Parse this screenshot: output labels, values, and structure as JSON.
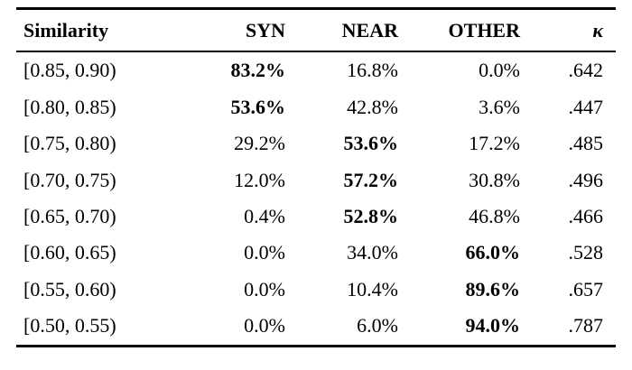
{
  "page": {
    "background": "#ffffff",
    "text_color": "#000000"
  },
  "table": {
    "headers": [
      "Similarity",
      "SYN",
      "NEAR",
      "OTHER",
      "κ"
    ],
    "rows": [
      {
        "similarity": "[0.85, 0.90)",
        "syn": "83.2%",
        "near": "16.8%",
        "other": "0.0%",
        "kappa": ".642",
        "bold": "syn"
      },
      {
        "similarity": "[0.80, 0.85)",
        "syn": "53.6%",
        "near": "42.8%",
        "other": "3.6%",
        "kappa": ".447",
        "bold": "syn"
      },
      {
        "similarity": "[0.75, 0.80)",
        "syn": "29.2%",
        "near": "53.6%",
        "other": "17.2%",
        "kappa": ".485",
        "bold": "near"
      },
      {
        "similarity": "[0.70, 0.75)",
        "syn": "12.0%",
        "near": "57.2%",
        "other": "30.8%",
        "kappa": ".496",
        "bold": "near"
      },
      {
        "similarity": "[0.65, 0.70)",
        "syn": "0.4%",
        "near": "52.8%",
        "other": "46.8%",
        "kappa": ".466",
        "bold": "near"
      },
      {
        "similarity": "[0.60, 0.65)",
        "syn": "0.0%",
        "near": "34.0%",
        "other": "66.0%",
        "kappa": ".528",
        "bold": "other"
      },
      {
        "similarity": "[0.55, 0.60)",
        "syn": "0.0%",
        "near": "10.4%",
        "other": "89.6%",
        "kappa": ".657",
        "bold": "other"
      },
      {
        "similarity": "[0.50, 0.55)",
        "syn": "0.0%",
        "near": "6.0%",
        "other": "94.0%",
        "kappa": ".787",
        "bold": "other"
      }
    ]
  }
}
